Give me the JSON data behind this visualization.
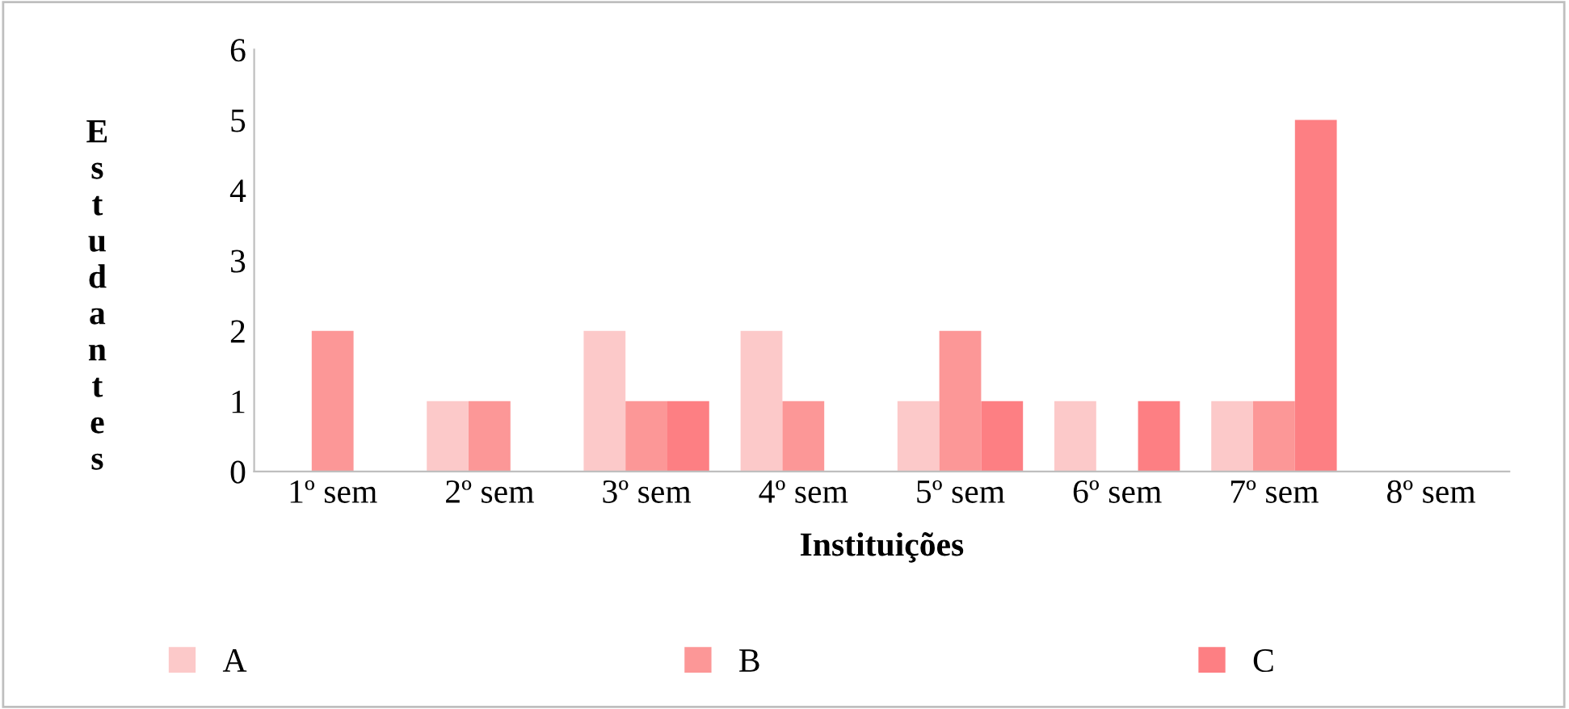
{
  "chart_data": {
    "type": "bar",
    "categories": [
      "1º sem",
      "2º sem",
      "3º sem",
      "4º sem",
      "5º sem",
      "6º sem",
      "7º sem",
      "8º sem"
    ],
    "series": [
      {
        "name": "A",
        "color": "#fcc9c9",
        "values": [
          0,
          1,
          2,
          2,
          1,
          1,
          1,
          0
        ]
      },
      {
        "name": "B",
        "color": "#fc9797",
        "values": [
          2,
          1,
          1,
          1,
          2,
          0,
          1,
          0
        ]
      },
      {
        "name": "C",
        "color": "#fd7f83",
        "values": [
          0,
          0,
          1,
          0,
          1,
          1,
          5,
          0
        ]
      }
    ],
    "xlabel": "Instituições",
    "ylabel": "Estudantes",
    "ylim": [
      0,
      6
    ],
    "yticks": [
      0,
      1,
      2,
      3,
      4,
      5,
      6
    ],
    "grid": false,
    "legend": "bottom"
  }
}
